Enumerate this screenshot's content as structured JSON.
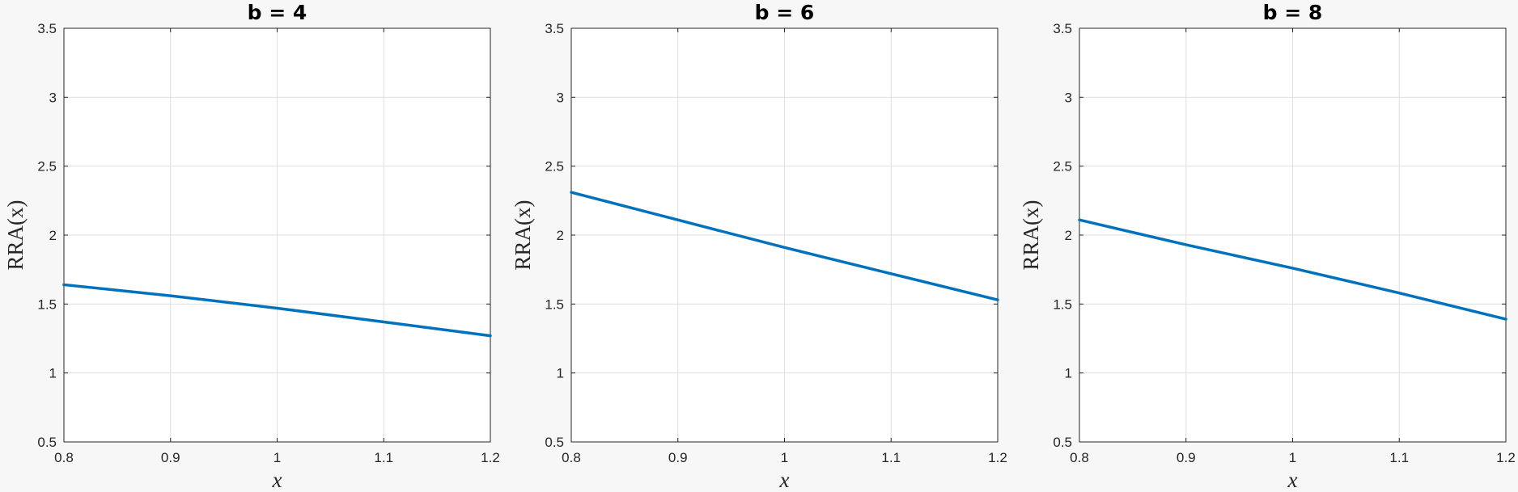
{
  "chart_data": [
    {
      "type": "line",
      "title": "b = 4",
      "xlabel": "x",
      "ylabel": "RRA(x)",
      "xlim": [
        0.8,
        1.2
      ],
      "ylim": [
        0.5,
        3.5
      ],
      "xticks": [
        "0.8",
        "0.9",
        "1",
        "1.1",
        "1.2"
      ],
      "yticks": [
        "0.5",
        "1",
        "1.5",
        "2",
        "2.5",
        "3",
        "3.5"
      ],
      "grid": true,
      "color": "#0072bd",
      "series": [
        {
          "x": [
            0.8,
            0.9,
            1.0,
            1.1,
            1.2
          ],
          "y": [
            1.64,
            1.56,
            1.47,
            1.37,
            1.27
          ]
        }
      ]
    },
    {
      "type": "line",
      "title": "b = 6",
      "xlabel": "x",
      "ylabel": "RRA(x)",
      "xlim": [
        0.8,
        1.2
      ],
      "ylim": [
        0.5,
        3.5
      ],
      "xticks": [
        "0.8",
        "0.9",
        "1",
        "1.1",
        "1.2"
      ],
      "yticks": [
        "0.5",
        "1",
        "1.5",
        "2",
        "2.5",
        "3",
        "3.5"
      ],
      "grid": true,
      "color": "#0072bd",
      "series": [
        {
          "x": [
            0.8,
            0.9,
            1.0,
            1.1,
            1.2
          ],
          "y": [
            2.31,
            2.11,
            1.91,
            1.72,
            1.53
          ]
        }
      ]
    },
    {
      "type": "line",
      "title": "b = 8",
      "xlabel": "x",
      "ylabel": "RRA(x)",
      "xlim": [
        0.8,
        1.2
      ],
      "ylim": [
        0.5,
        3.5
      ],
      "xticks": [
        "0.8",
        "0.9",
        "1",
        "1.1",
        "1.2"
      ],
      "yticks": [
        "0.5",
        "1",
        "1.5",
        "2",
        "2.5",
        "3",
        "3.5"
      ],
      "grid": true,
      "color": "#0072bd",
      "series": [
        {
          "x": [
            0.8,
            0.9,
            1.0,
            1.1,
            1.2
          ],
          "y": [
            2.11,
            1.93,
            1.76,
            1.58,
            1.39
          ]
        }
      ]
    }
  ]
}
